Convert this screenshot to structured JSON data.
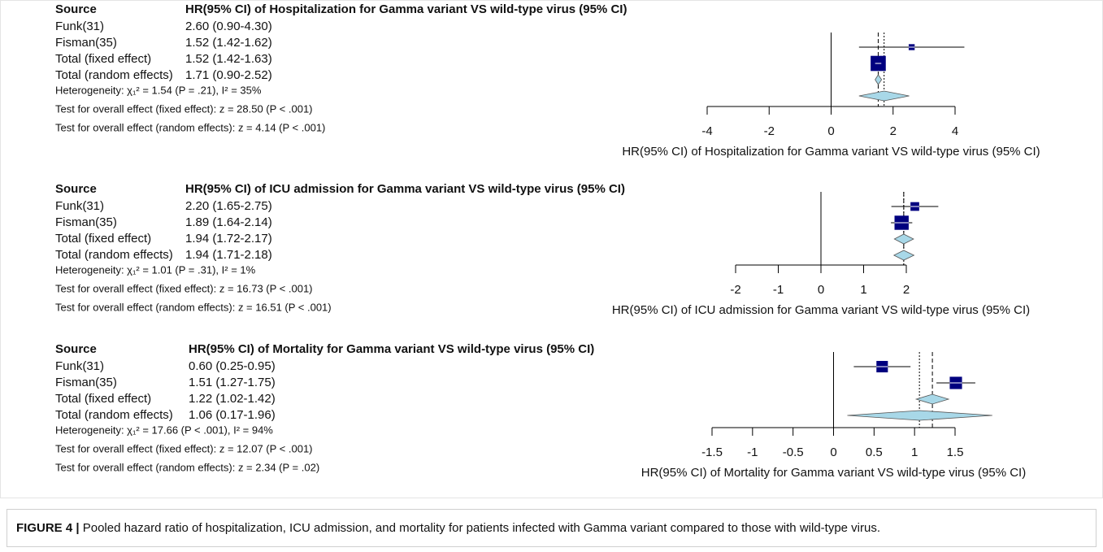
{
  "chart_data": [
    {
      "type": "forest",
      "source_label": "Source",
      "title": "HR(95% CI) of Hospitalization for Gamma variant VS wild-type virus (95% CI)",
      "categories": [
        "Funk(31)",
        "Fisman(35)",
        "Total (fixed effect)",
        "Total (random effects)"
      ],
      "values": [
        2.6,
        1.52,
        1.52,
        1.71
      ],
      "lower": [
        0.9,
        1.42,
        1.42,
        0.9
      ],
      "upper": [
        4.3,
        1.62,
        1.63,
        2.52
      ],
      "weights": [
        5,
        95,
        null,
        null
      ],
      "value_labels": [
        "2.60 (0.90-4.30)",
        "1.52 (1.42-1.62)",
        "1.52 (1.42-1.63)",
        "1.71 (0.90-2.52)"
      ],
      "notes": [
        "Heterogeneity: χ₁² = 1.54 (P = .21), I² = 35%",
        "Test for overall effect (fixed effect): z = 28.50 (P < .001)",
        "Test for overall effect (random effects): z = 4.14 (P < .001)"
      ],
      "xlabel": "HR(95% CI) of Hospitalization for Gamma variant VS wild-type virus (95% CI)",
      "xlim": [
        -4,
        4
      ],
      "xticks": [
        -4,
        -2,
        0,
        2,
        4
      ],
      "box_color": "#00007f",
      "diamond_color": "#a8d8e8"
    },
    {
      "type": "forest",
      "source_label": "Source",
      "title": "HR(95% CI) of ICU admission for Gamma variant VS wild-type virus (95% CI)",
      "categories": [
        "Funk(31)",
        "Fisman(35)",
        "Total (fixed effect)",
        "Total (random effects)"
      ],
      "values": [
        2.2,
        1.89,
        1.94,
        1.94
      ],
      "lower": [
        1.65,
        1.64,
        1.72,
        1.71
      ],
      "upper": [
        2.75,
        2.14,
        2.17,
        2.18
      ],
      "weights": [
        20,
        80,
        null,
        null
      ],
      "value_labels": [
        "2.20 (1.65-2.75)",
        "1.89 (1.64-2.14)",
        "1.94 (1.72-2.17)",
        "1.94 (1.71-2.18)"
      ],
      "notes": [
        "Heterogeneity: χ₁² = 1.01 (P = .31), I² = 1%",
        "Test for overall effect (fixed effect): z = 16.73 (P < .001)",
        "Test for overall effect (random effects): z = 16.51 (P < .001)"
      ],
      "xlabel": "HR(95% CI) of ICU admission for Gamma variant VS wild-type virus (95% CI)",
      "xlim": [
        -2,
        2
      ],
      "xticks": [
        -2,
        -1,
        0,
        1,
        2
      ],
      "box_color": "#00007f",
      "diamond_color": "#a8d8e8"
    },
    {
      "type": "forest",
      "source_label": "Source",
      "title": "HR(95% CI) of Mortality for Gamma variant VS wild-type virus (95% CI)",
      "categories": [
        "Funk(31)",
        "Fisman(35)",
        "Total (fixed effect)",
        "Total (random effects)"
      ],
      "values": [
        0.6,
        1.51,
        1.22,
        1.06
      ],
      "lower": [
        0.25,
        1.27,
        1.02,
        0.17
      ],
      "upper": [
        0.95,
        1.75,
        1.42,
        1.96
      ],
      "weights": [
        45,
        55,
        null,
        null
      ],
      "value_labels": [
        "0.60 (0.25-0.95)",
        "1.51 (1.27-1.75)",
        "1.22 (1.02-1.42)",
        "1.06 (0.17-1.96)"
      ],
      "notes": [
        "Heterogeneity: χ₁² = 17.66 (P < .001), I² = 94%",
        "Test for overall effect (fixed effect): z = 12.07 (P < .001)",
        "Test for overall effect (random effects): z = 2.34 (P = .02)"
      ],
      "xlabel": "HR(95% CI) of Mortality for Gamma variant VS wild-type virus (95% CI)",
      "xlim": [
        -1.5,
        1.5
      ],
      "xticks": [
        -1.5,
        -1,
        -0.5,
        0,
        0.5,
        1,
        1.5
      ],
      "box_color": "#00007f",
      "diamond_color": "#a8d8e8"
    }
  ],
  "caption": {
    "label": "FIGURE 4 |",
    "text": "Pooled hazard ratio of hospitalization, ICU admission, and mortality for patients infected with Gamma variant compared to those with wild-type virus."
  }
}
